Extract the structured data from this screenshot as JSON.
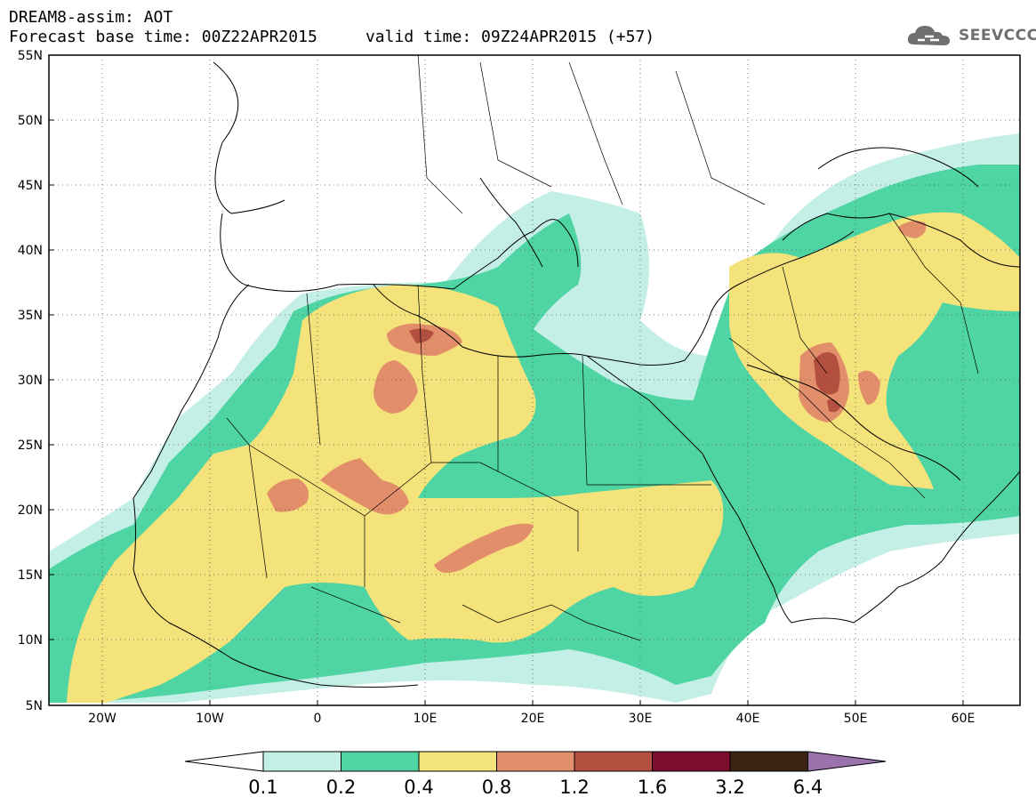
{
  "header": {
    "title": "DREAM8-assim: AOT",
    "base_label": "Forecast base time: 00Z22APR2015",
    "valid_label": "valid time: 09Z24APR2015 (+57)"
  },
  "logo": {
    "text": "SEEVCCC",
    "icon": "cloud-logo-icon"
  },
  "map": {
    "lat_labels": [
      "55N",
      "50N",
      "45N",
      "40N",
      "35N",
      "30N",
      "25N",
      "20N",
      "15N",
      "10N",
      "5N"
    ],
    "lon_labels": [
      "20W",
      "10W",
      "0",
      "10E",
      "20E",
      "30E",
      "40E",
      "50E",
      "60E"
    ],
    "grid": "dotted",
    "extent": {
      "lon": [
        -25,
        65
      ],
      "lat": [
        5,
        55
      ]
    }
  },
  "legend": {
    "ticks": [
      "0.1",
      "0.2",
      "0.4",
      "0.8",
      "1.2",
      "1.6",
      "3.2",
      "6.4"
    ],
    "colors": {
      "below": "#ffffff",
      "c1": "#c4efe6",
      "c2": "#4fd4a3",
      "c3": "#f4e27a",
      "c4": "#e38e6b",
      "c5": "#b34f3f",
      "c6": "#7a0e2c",
      "c7": "#3a2514",
      "above": "#9c72ab"
    }
  }
}
